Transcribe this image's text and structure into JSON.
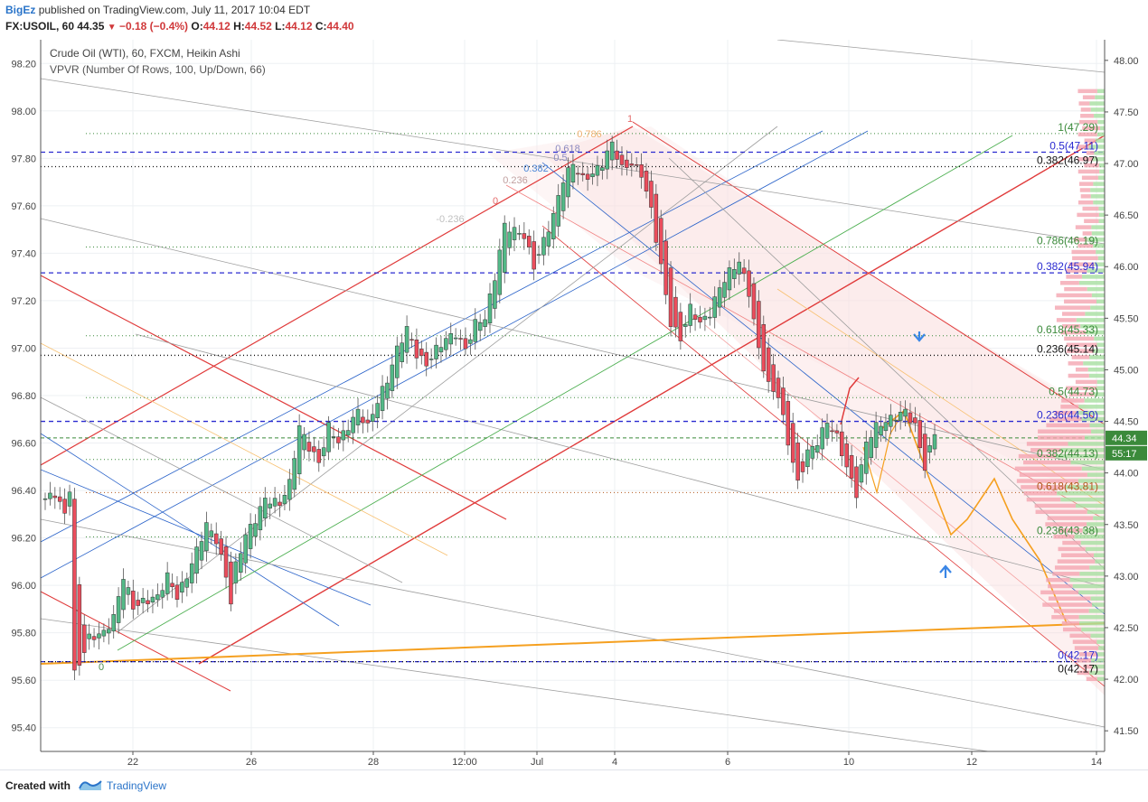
{
  "header": {
    "author": "BigEz",
    "published": "published on TradingView.com, July 11, 2017 10:04 EDT",
    "symbol": "FX:USOIL, 60",
    "last": "44.35",
    "change": "−0.18 (−0.4%)",
    "o_label": "O:",
    "o_value": "44.12",
    "h_label": "H:",
    "h_value": "44.52",
    "l_label": "L:",
    "l_value": "44.12",
    "c_label": "C:",
    "c_value": "44.40"
  },
  "legend": {
    "line1": "Crude Oil (WTI), 60, FXCM, Heikin Ashi",
    "line2": "VPVR (Number Of Rows, 100, Up/Down, 66)"
  },
  "footer": {
    "created": "Created with",
    "brand": "TradingView"
  },
  "colors": {
    "bull": "#53b987",
    "bear": "#eb4d5c",
    "grid": "#eef0f3",
    "red_line": "#e03a3a",
    "blue_line": "#2962c9",
    "orange": "#f5a020",
    "gray_line": "#9e9e9e",
    "green_line": "#4caf50"
  },
  "chart_data": {
    "type": "candlestick",
    "title": "Crude Oil (WTI), 60, FXCM, Heikin Ashi",
    "x_ticks": [
      "22",
      "26",
      "28",
      "12:00",
      "Jul",
      "4",
      "6",
      "10",
      "12",
      "14"
    ],
    "left_axis": {
      "range": [
        95.3,
        98.3
      ],
      "ticks": [
        "98.20",
        "98.00",
        "97.80",
        "97.60",
        "97.40",
        "97.20",
        "97.00",
        "96.80",
        "96.60",
        "96.40",
        "96.20",
        "96.00",
        "95.80",
        "95.60",
        "95.40"
      ]
    },
    "right_axis": {
      "range": [
        41.3,
        48.2
      ],
      "ticks": [
        "48.00",
        "47.50",
        "47.00",
        "46.50",
        "46.00",
        "45.50",
        "45.00",
        "44.50",
        "44.00",
        "43.50",
        "43.00",
        "42.50",
        "42.00",
        "41.50"
      ],
      "last_price": "44.34",
      "countdown": "55:17"
    },
    "price_path": [
      [
        0,
        43.75
      ],
      [
        2,
        43.8
      ],
      [
        4,
        43.6
      ],
      [
        5,
        43.85
      ],
      [
        6,
        42.05
      ],
      [
        7,
        42.15
      ],
      [
        9,
        42.4
      ],
      [
        12,
        42.45
      ],
      [
        14,
        42.6
      ],
      [
        16,
        43.0
      ],
      [
        18,
        42.7
      ],
      [
        20,
        42.75
      ],
      [
        23,
        42.8
      ],
      [
        25,
        43.0
      ],
      [
        27,
        42.8
      ],
      [
        29,
        43.0
      ],
      [
        31,
        43.25
      ],
      [
        33,
        43.5
      ],
      [
        35,
        43.35
      ],
      [
        37,
        43.0
      ],
      [
        38,
        42.75
      ],
      [
        39,
        43.1
      ],
      [
        41,
        43.4
      ],
      [
        43,
        43.55
      ],
      [
        45,
        43.75
      ],
      [
        48,
        43.7
      ],
      [
        50,
        43.9
      ],
      [
        52,
        44.45
      ],
      [
        54,
        44.25
      ],
      [
        56,
        44.1
      ],
      [
        58,
        44.45
      ],
      [
        60,
        44.3
      ],
      [
        62,
        44.45
      ],
      [
        64,
        44.6
      ],
      [
        66,
        44.45
      ],
      [
        68,
        44.7
      ],
      [
        70,
        44.9
      ],
      [
        72,
        45.2
      ],
      [
        74,
        45.4
      ],
      [
        76,
        45.15
      ],
      [
        78,
        45.05
      ],
      [
        80,
        45.2
      ],
      [
        82,
        45.3
      ],
      [
        84,
        45.35
      ],
      [
        86,
        45.2
      ],
      [
        88,
        45.45
      ],
      [
        90,
        45.5
      ],
      [
        92,
        45.9
      ],
      [
        94,
        46.4
      ],
      [
        96,
        46.35
      ],
      [
        98,
        46.3
      ],
      [
        100,
        46.0
      ],
      [
        102,
        46.25
      ],
      [
        104,
        46.5
      ],
      [
        106,
        46.85
      ],
      [
        108,
        47.0
      ],
      [
        110,
        46.85
      ],
      [
        112,
        46.9
      ],
      [
        114,
        47.0
      ],
      [
        116,
        47.2
      ],
      [
        118,
        46.95
      ],
      [
        120,
        47.0
      ],
      [
        122,
        46.9
      ],
      [
        124,
        46.55
      ],
      [
        126,
        46.0
      ],
      [
        128,
        45.45
      ],
      [
        130,
        45.3
      ],
      [
        132,
        45.6
      ],
      [
        134,
        45.45
      ],
      [
        136,
        45.55
      ],
      [
        138,
        45.8
      ],
      [
        140,
        45.95
      ],
      [
        142,
        46.05
      ],
      [
        144,
        45.75
      ],
      [
        146,
        45.2
      ],
      [
        148,
        44.85
      ],
      [
        150,
        44.75
      ],
      [
        152,
        44.3
      ],
      [
        154,
        43.9
      ],
      [
        156,
        44.2
      ],
      [
        158,
        44.3
      ],
      [
        160,
        44.5
      ],
      [
        162,
        44.35
      ],
      [
        164,
        44.05
      ],
      [
        166,
        43.8
      ],
      [
        168,
        44.3
      ],
      [
        170,
        44.45
      ],
      [
        172,
        44.5
      ],
      [
        174,
        44.55
      ],
      [
        176,
        44.6
      ],
      [
        178,
        44.45
      ],
      [
        180,
        44.05
      ],
      [
        182,
        44.4
      ]
    ],
    "fib_levels": [
      {
        "label": "1(47.29)",
        "value": 47.29,
        "color": "#3b8a3b"
      },
      {
        "label": "0.5(47.11)",
        "value": 47.11,
        "color": "#2a2ad0"
      },
      {
        "label": "0.382(46.97)",
        "value": 46.97,
        "color": "#111111"
      },
      {
        "label": "0.786(46.19)",
        "value": 46.19,
        "color": "#3b8a3b"
      },
      {
        "label": "0.382(45.94)",
        "value": 45.94,
        "color": "#2a2ad0"
      },
      {
        "label": "0.618(45.33)",
        "value": 45.33,
        "color": "#3b8a3b"
      },
      {
        "label": "0.236(45.14)",
        "value": 45.14,
        "color": "#111111"
      },
      {
        "label": "0.5(44.73)",
        "value": 44.73,
        "color": "#3b8a3b"
      },
      {
        "label": "0.236(44.50)",
        "value": 44.5,
        "color": "#2a2ad0"
      },
      {
        "label": "0.382(44.13)",
        "value": 44.13,
        "color": "#3b8a3b"
      },
      {
        "label": "0.618(43.81)",
        "value": 43.81,
        "color": "#b35a1f"
      },
      {
        "label": "0.236(43.38)",
        "value": 43.38,
        "color": "#3b8a3b"
      },
      {
        "label": "0(42.17)",
        "value": 42.17,
        "color": "#2a2ad0"
      },
      {
        "label": "0(42.17)",
        "value": 42.17,
        "color": "#111111"
      }
    ],
    "fan_labels": [
      "1",
      "0.786",
      "0.618",
      "0.5",
      "0.382",
      "0.236",
      "0",
      "-0.236",
      "0"
    ]
  }
}
